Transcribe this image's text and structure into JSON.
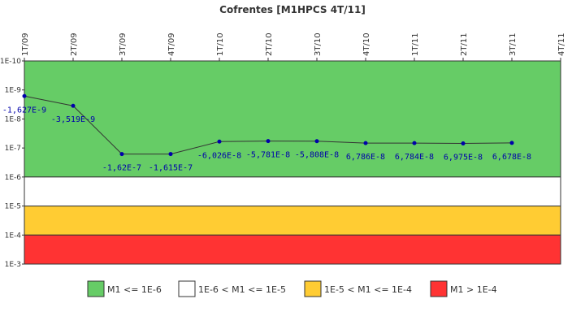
{
  "chart_data": {
    "type": "line",
    "title": "Cofrentes [M1HPCS 4T/11]",
    "categories": [
      "1T/09",
      "2T/09",
      "3T/09",
      "4T/09",
      "1T/10",
      "2T/10",
      "3T/10",
      "4T/10",
      "1T/11",
      "2T/11",
      "3T/11",
      "4T/11"
    ],
    "y_scale": "log",
    "y_inverted": true,
    "y_ticks": [
      "1E-10",
      "1E-9",
      "1E-8",
      "1E-7",
      "1E-6",
      "1E-5",
      "1E-4",
      "1E-3"
    ],
    "ylim": [
      1e-10,
      0.001
    ],
    "grid": false,
    "bands": [
      {
        "from": 1e-10,
        "to": 1e-06,
        "color": "#66cc66",
        "label": "M1 <= 1E-6"
      },
      {
        "from": 1e-06,
        "to": 1e-05,
        "color": "#ffffff",
        "label": "1E-6 < M1 <= 1E-5"
      },
      {
        "from": 1e-05,
        "to": 0.0001,
        "color": "#ffcc33",
        "label": "1E-5 < M1 <= 1E-4"
      },
      {
        "from": 0.0001,
        "to": 0.001,
        "color": "#ff3333",
        "label": "M1 > 1E-4"
      }
    ],
    "legend_position": "bottom",
    "series": [
      {
        "values": [
          -1.627e-09,
          -3.519e-09,
          -1.62e-07,
          -1.615e-07,
          -6.026e-08,
          -5.781e-08,
          -5.808e-08,
          6.786e-08,
          6.784e-08,
          6.975e-08,
          6.678e-08,
          null
        ],
        "labels": [
          "-1,627E-9",
          "-3,519E-9",
          "-1,62E-7",
          "-1,615E-7",
          "-6,026E-8",
          "-5,781E-8",
          "-5,808E-8",
          "6,786E-8",
          "6,784E-8",
          "6,975E-8",
          "6,678E-8",
          ""
        ],
        "color": "#333333",
        "marker_color": "#0000aa",
        "label_color": "#0000aa"
      }
    ]
  }
}
